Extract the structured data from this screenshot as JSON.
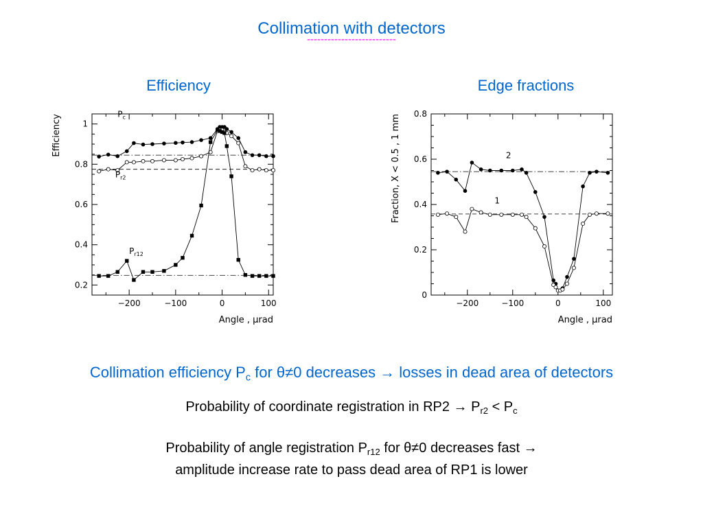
{
  "slide": {
    "title": "Collimation with detectors",
    "title_underline": "--------------------------",
    "caption_left": "Efficiency",
    "caption_right": "Edge fractions",
    "text_color": "#0066cc",
    "underline_color": "#ff00ff"
  },
  "body_text": {
    "line1_a": "Collimation efficiency P",
    "line1_sub": "c",
    "line1_b": " for  θ≠0 decreases  → losses in dead area of detectors",
    "line2_a": "Probability of coordinate registration in RP2 → P",
    "line2_sub1": "r2",
    "line2_b": " < P",
    "line2_sub2": "c",
    "line3_a": "Probability of angle registration P",
    "line3_sub": "r12",
    "line3_b": " for θ≠0 decreases fast  →",
    "line4": "amplitude increase rate to pass dead area of RP1 is lower"
  },
  "chart_data": [
    {
      "type": "line",
      "xlabel": "Angle , μrad",
      "ylabel": "Efficiency",
      "xlim": [
        -280,
        110
      ],
      "ylim": [
        0.15,
        1.05
      ],
      "xticks": [
        -200,
        -100,
        0,
        100
      ],
      "xtick_labels": [
        "−200",
        "−100",
        "0",
        "100"
      ],
      "yticks": [
        0.2,
        0.4,
        0.6,
        0.8,
        1.0
      ],
      "ytick_labels": [
        "0.2",
        "0.4",
        "0.6",
        "0.8",
        "1"
      ],
      "series": [
        {
          "name": "Pc",
          "label_main": "P",
          "label_sub": "c",
          "marker": "filled-circle",
          "label_at": [
            -265,
            1.4
          ],
          "x": [
            -265,
            -245,
            -225,
            -205,
            -190,
            -170,
            -150,
            -125,
            -100,
            -85,
            -65,
            -45,
            -25,
            -10,
            -5,
            0,
            5,
            10,
            20,
            35,
            50,
            65,
            80,
            95,
            110
          ],
          "y": [
            0.838,
            0.848,
            0.84,
            0.865,
            0.905,
            0.898,
            0.9,
            0.903,
            0.906,
            0.908,
            0.91,
            0.92,
            0.93,
            0.975,
            0.985,
            0.985,
            0.985,
            0.975,
            0.96,
            0.93,
            0.86,
            0.845,
            0.845,
            0.84,
            0.84
          ],
          "label_x": -225,
          "label_y": 1.035
        },
        {
          "name": "Pr2",
          "label_main": "P",
          "label_sub": "r2",
          "marker": "open-circle",
          "x": [
            -265,
            -245,
            -225,
            -205,
            -190,
            -170,
            -150,
            -125,
            -100,
            -85,
            -65,
            -45,
            -25,
            -10,
            -5,
            0,
            5,
            10,
            20,
            35,
            50,
            65,
            80,
            95,
            110
          ],
          "y": [
            0.765,
            0.775,
            0.77,
            0.81,
            0.81,
            0.815,
            0.815,
            0.82,
            0.82,
            0.825,
            0.83,
            0.84,
            0.86,
            0.965,
            0.97,
            0.97,
            0.96,
            0.955,
            0.94,
            0.905,
            0.79,
            0.77,
            0.775,
            0.77,
            0.77
          ],
          "label_x": -230,
          "label_y": 0.735
        },
        {
          "name": "Pr12",
          "label_main": "P",
          "label_sub": "r12",
          "marker": "filled-square",
          "x": [
            -265,
            -245,
            -225,
            -205,
            -190,
            -170,
            -150,
            -125,
            -100,
            -85,
            -65,
            -45,
            -25,
            -10,
            -5,
            0,
            5,
            10,
            20,
            35,
            50,
            65,
            80,
            95,
            110
          ],
          "y": [
            0.245,
            0.245,
            0.265,
            0.32,
            0.225,
            0.265,
            0.265,
            0.27,
            0.3,
            0.335,
            0.445,
            0.595,
            0.91,
            0.97,
            0.965,
            0.96,
            0.955,
            0.89,
            0.74,
            0.325,
            0.25,
            0.245,
            0.245,
            0.245,
            0.245
          ],
          "label_x": -200,
          "label_y": 0.355
        }
      ],
      "reference_lines": [
        {
          "y": 0.845,
          "style": "dash-dot"
        },
        {
          "y": 0.775,
          "style": "dashed"
        },
        {
          "y": 0.248,
          "style": "dash-dot"
        }
      ]
    },
    {
      "type": "line",
      "xlabel": "Angle , μrad",
      "ylabel": "Fraction, X < 0.5 , 1 mm",
      "xlim": [
        -280,
        120
      ],
      "ylim": [
        0,
        0.8
      ],
      "xticks": [
        -200,
        -100,
        0,
        100
      ],
      "xtick_labels": [
        "−200",
        "−100",
        "0",
        "100"
      ],
      "yticks": [
        0,
        0.2,
        0.4,
        0.6,
        0.8
      ],
      "ytick_labels": [
        "0",
        "0.2",
        "0.4",
        "0.6",
        "0.8"
      ],
      "series": [
        {
          "name": "2",
          "label_main": "2",
          "label_sub": "",
          "marker": "filled-circle",
          "x": [
            -265,
            -245,
            -225,
            -205,
            -190,
            -170,
            -150,
            -125,
            -100,
            -80,
            -70,
            -50,
            -30,
            -10,
            -5,
            0,
            5,
            10,
            20,
            35,
            55,
            70,
            85,
            110
          ],
          "y": [
            0.54,
            0.545,
            0.51,
            0.46,
            0.585,
            0.555,
            0.55,
            0.55,
            0.55,
            0.555,
            0.54,
            0.455,
            0.345,
            0.065,
            0.05,
            0.02,
            0.02,
            0.03,
            0.08,
            0.16,
            0.48,
            0.54,
            0.545,
            0.54
          ],
          "label_x": -115,
          "label_y": 0.605
        },
        {
          "name": "1",
          "label_main": "1",
          "label_sub": "",
          "marker": "open-circle",
          "x": [
            -265,
            -245,
            -225,
            -205,
            -190,
            -170,
            -150,
            -125,
            -100,
            -80,
            -70,
            -50,
            -30,
            -10,
            -5,
            0,
            5,
            10,
            20,
            35,
            55,
            70,
            85,
            110
          ],
          "y": [
            0.355,
            0.36,
            0.345,
            0.28,
            0.38,
            0.365,
            0.355,
            0.355,
            0.355,
            0.355,
            0.345,
            0.295,
            0.215,
            0.045,
            0.035,
            0.02,
            0.02,
            0.025,
            0.05,
            0.12,
            0.315,
            0.355,
            0.36,
            0.36
          ],
          "label_x": -140,
          "label_y": 0.405
        }
      ],
      "reference_lines": [
        {
          "y": 0.545,
          "style": "dash-dot"
        },
        {
          "y": 0.358,
          "style": "dashed"
        }
      ]
    }
  ]
}
